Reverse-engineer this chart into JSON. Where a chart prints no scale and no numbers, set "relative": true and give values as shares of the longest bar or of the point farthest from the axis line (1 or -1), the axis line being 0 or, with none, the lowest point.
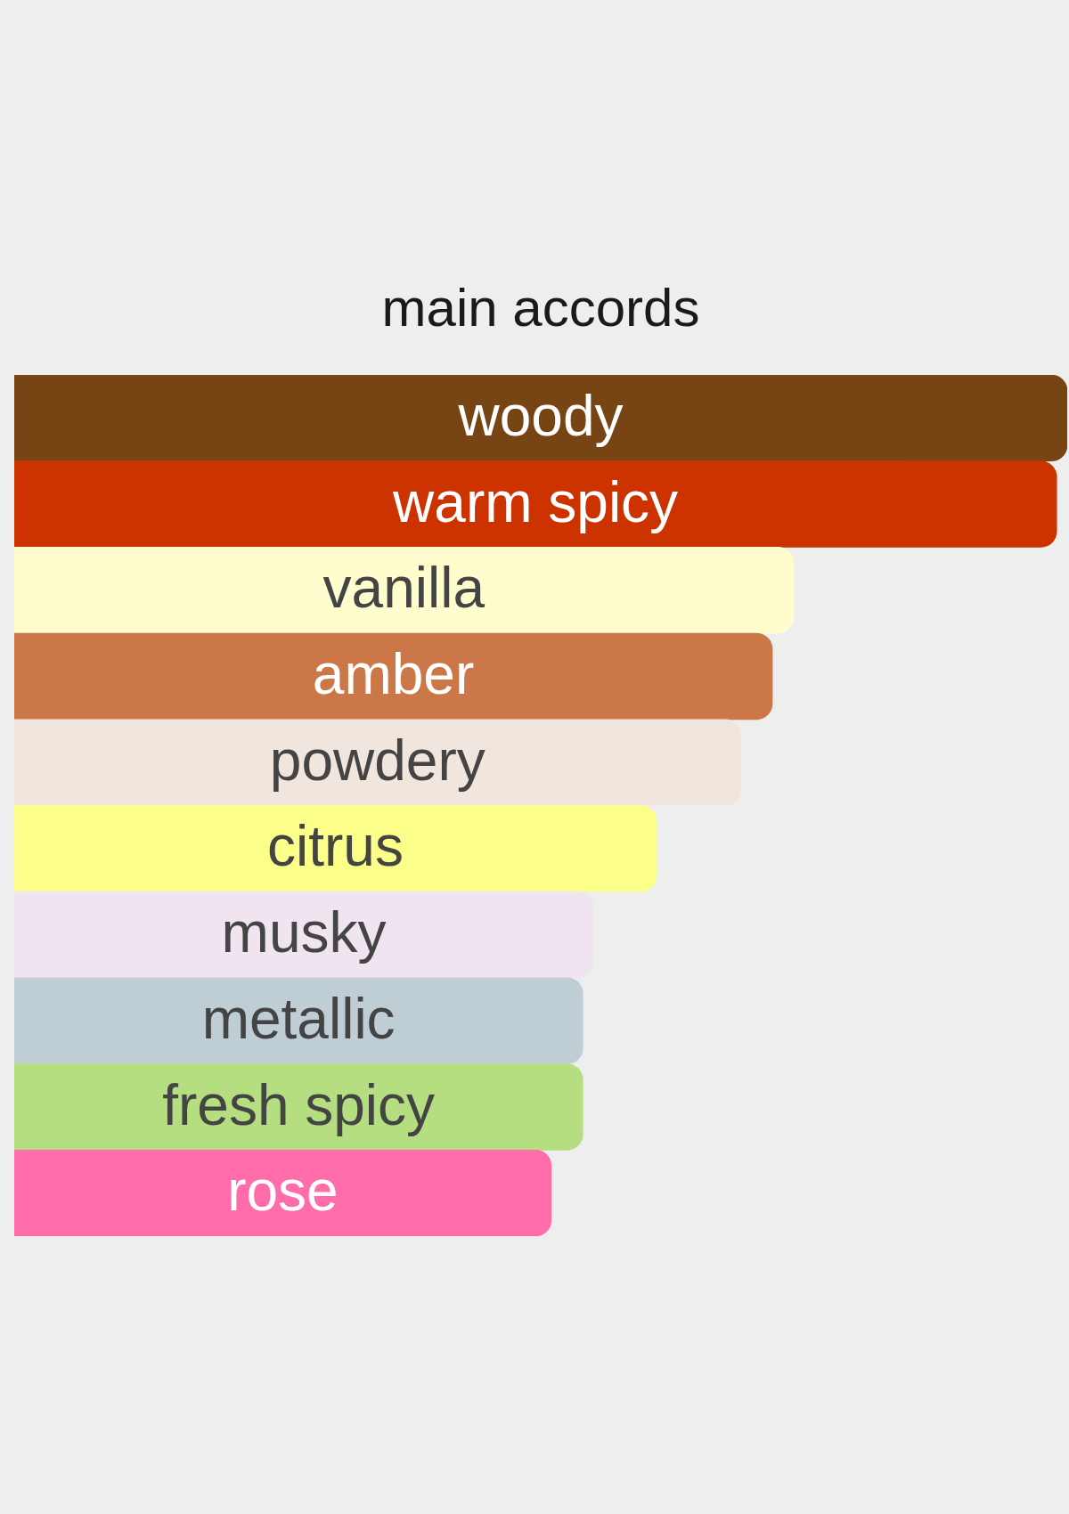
{
  "chart_data": {
    "type": "bar",
    "orientation": "horizontal",
    "relative": true,
    "title": "main accords",
    "categories": [
      "woody",
      "warm spicy",
      "vanilla",
      "amber",
      "powdery",
      "citrus",
      "musky",
      "metallic",
      "fresh spicy",
      "rose"
    ],
    "values": [
      1,
      0.99,
      0.74,
      0.72,
      0.69,
      0.61,
      0.55,
      0.54,
      0.54,
      0.51
    ],
    "colors": [
      "#774414",
      "#cc3300",
      "#fffdcd",
      "#cc7747",
      "#f1e6de",
      "#fbff8a",
      "#f0e4f1",
      "#bfcdd4",
      "#b4de80",
      "#fe6daa"
    ]
  }
}
